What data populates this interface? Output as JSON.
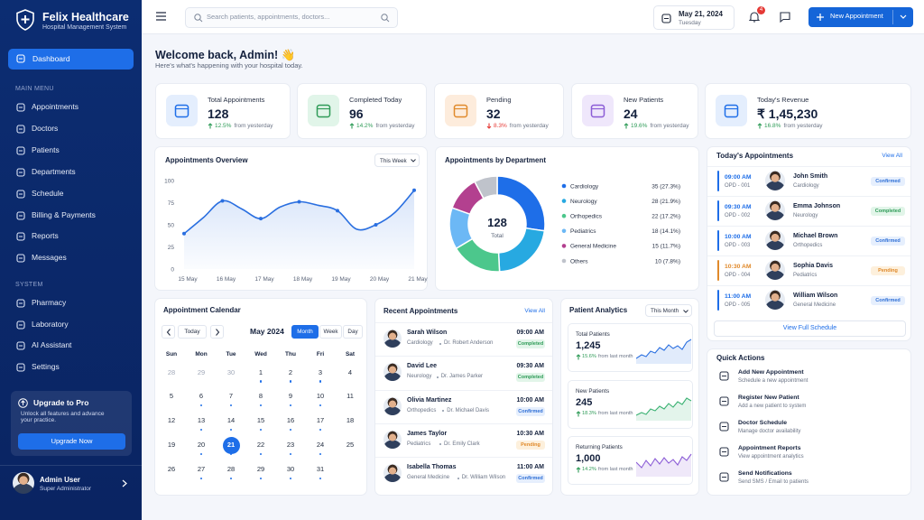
{
  "brand": {
    "name": "Felix Healthcare",
    "tagline": "Hospital Management System"
  },
  "nav": {
    "active": "Dashboard",
    "main_label": "MAIN MENU",
    "main": [
      "Appointments",
      "Doctors",
      "Patients",
      "Departments",
      "Schedule",
      "Billing & Payments",
      "Reports",
      "Messages"
    ],
    "system_label": "SYSTEM",
    "system": [
      "Pharmacy",
      "Laboratory",
      "AI Assistant",
      "Settings"
    ]
  },
  "upgrade": {
    "title": "Upgrade to Pro",
    "text": "Unlock all features and advance your practice.",
    "button": "Upgrade Now"
  },
  "user": {
    "name": "Admin User",
    "role": "Super Administrator"
  },
  "topbar": {
    "search_placeholder": "Search patients, appointments, doctors...",
    "date": "May 21, 2024",
    "day": "Tuesday",
    "notification_count": "4",
    "new_button": "New Appointment"
  },
  "welcome": {
    "title": "Welcome back, Admin! 👋",
    "subtitle": "Here's what's happening with your hospital today."
  },
  "stats": [
    {
      "label": "Total Appointments",
      "value": "128",
      "change": "12.5%",
      "trend": "up",
      "note": "from yesterday",
      "color": "#1e6ee8"
    },
    {
      "label": "Completed Today",
      "value": "96",
      "change": "14.2%",
      "trend": "up",
      "note": "from yesterday",
      "color": "#2e9b57"
    },
    {
      "label": "Pending",
      "value": "32",
      "change": "8.3%",
      "trend": "down",
      "note": "from yesterday",
      "color": "#e0892a"
    },
    {
      "label": "New Patients",
      "value": "24",
      "change": "19.6%",
      "trend": "up",
      "note": "from yesterday",
      "color": "#8b5cd6"
    },
    {
      "label": "Today's Revenue",
      "value": "₹ 1,45,230",
      "change": "16.8%",
      "trend": "up",
      "note": "from yesterday",
      "color": "#1e6ee8"
    }
  ],
  "chart_data": [
    {
      "type": "line",
      "title": "Appointments Overview",
      "filter": "This Week",
      "categories": [
        "15 May",
        null,
        "16 May",
        null,
        "17 May",
        null,
        "18 May",
        null,
        "19 May",
        null,
        "20 May",
        null,
        "21 May"
      ],
      "values": [
        40,
        58,
        77,
        68,
        57,
        70,
        76,
        72,
        66,
        45,
        50,
        64,
        89
      ],
      "color": "#2a6fe0",
      "ylim": [
        0,
        100
      ],
      "yticks": [
        0,
        25,
        50,
        75,
        100
      ],
      "grid": false
    },
    {
      "type": "donut",
      "title": "Appointments by Department",
      "center_value": "128",
      "center_label": "Total",
      "categories": [
        "Cardiology",
        "Neurology",
        "Orthopedics",
        "Pediatrics",
        "General Medicine",
        "Others"
      ],
      "values": [
        35,
        28,
        22,
        18,
        15,
        10
      ],
      "value_labels": [
        "35 (27.3%)",
        "28 (21.9%)",
        "22 (17.2%)",
        "18 (14.1%)",
        "15 (11.7%)",
        "10 (7.8%)"
      ],
      "colors": [
        "#1e6ee8",
        "#27a9e1",
        "#4cc78c",
        "#6cb8f5",
        "#b3408f",
        "#bfc3cb"
      ]
    }
  ],
  "today_appointments": {
    "title": "Today's Appointments",
    "view_all": "View All",
    "footer": "View Full Schedule",
    "items": [
      {
        "time": "09:00 AM",
        "code": "OPD - 001",
        "name": "John Smith",
        "dept": "Cardiology",
        "status": "Confirmed"
      },
      {
        "time": "09:30 AM",
        "code": "OPD - 002",
        "name": "Emma Johnson",
        "dept": "Neurology",
        "status": "Completed"
      },
      {
        "time": "10:00 AM",
        "code": "OPD - 003",
        "name": "Michael Brown",
        "dept": "Orthopedics",
        "status": "Confirmed"
      },
      {
        "time": "10:30 AM",
        "code": "OPD - 004",
        "name": "Sophia Davis",
        "dept": "Pediatrics",
        "status": "Pending"
      },
      {
        "time": "11:00 AM",
        "code": "OPD - 005",
        "name": "William Wilson",
        "dept": "General Medicine",
        "status": "Confirmed"
      }
    ]
  },
  "calendar": {
    "title": "Appointment Calendar",
    "today_button": "Today",
    "month": "May 2024",
    "views": [
      "Month",
      "Week",
      "Day"
    ],
    "active_view": "Month",
    "weekdays": [
      "Sun",
      "Mon",
      "Tue",
      "Wed",
      "Thu",
      "Fri",
      "Sat"
    ],
    "prev_month_days": [
      "28",
      "29",
      "30"
    ],
    "days": [
      "1",
      "2",
      "3",
      "4",
      "5",
      "6",
      "7",
      "8",
      "9",
      "10",
      "11",
      "12",
      "13",
      "14",
      "15",
      "16",
      "17",
      "18",
      "19",
      "20",
      "21",
      "22",
      "23",
      "24",
      "25",
      "26",
      "27",
      "28",
      "29",
      "30",
      "31"
    ],
    "selected": "21"
  },
  "recent": {
    "title": "Recent Appointments",
    "view_all": "View All",
    "items": [
      {
        "name": "Sarah Wilson",
        "dept": "Cardiology",
        "doctor": "Dr. Robert Anderson",
        "time": "09:00 AM",
        "status": "Completed"
      },
      {
        "name": "David Lee",
        "dept": "Neurology",
        "doctor": "Dr. James Parker",
        "time": "09:30 AM",
        "status": "Completed"
      },
      {
        "name": "Olivia Martinez",
        "dept": "Orthopedics",
        "doctor": "Dr. Michael Davis",
        "time": "10:00 AM",
        "status": "Confirmed"
      },
      {
        "name": "James Taylor",
        "dept": "Pediatrics",
        "doctor": "Dr. Emily Clark",
        "time": "10:30 AM",
        "status": "Pending"
      },
      {
        "name": "Isabella Thomas",
        "dept": "General Medicine",
        "doctor": "Dr. William Wilson",
        "time": "11:00 AM",
        "status": "Confirmed"
      }
    ]
  },
  "analytics": {
    "title": "Patient Analytics",
    "filter": "This Month",
    "items": [
      {
        "label": "Total Patients",
        "value": "1,245",
        "change": "15.6%",
        "note": "from last month",
        "color": "#2a6fe0"
      },
      {
        "label": "New Patients",
        "value": "245",
        "change": "18.3%",
        "note": "from last month",
        "color": "#3bb273"
      },
      {
        "label": "Returning Patients",
        "value": "1,000",
        "change": "14.2%",
        "note": "from last month",
        "color": "#8b5cd6"
      }
    ]
  },
  "quick_actions": {
    "title": "Quick Actions",
    "items": [
      {
        "title": "Add New Appointment",
        "desc": "Schedule a new appointment"
      },
      {
        "title": "Register New Patient",
        "desc": "Add a new patient to system"
      },
      {
        "title": "Doctor Schedule",
        "desc": "Manage doctor availability"
      },
      {
        "title": "Appointment Reports",
        "desc": "View appointment analytics"
      },
      {
        "title": "Send Notifications",
        "desc": "Send SMS / Email to patients"
      }
    ]
  }
}
